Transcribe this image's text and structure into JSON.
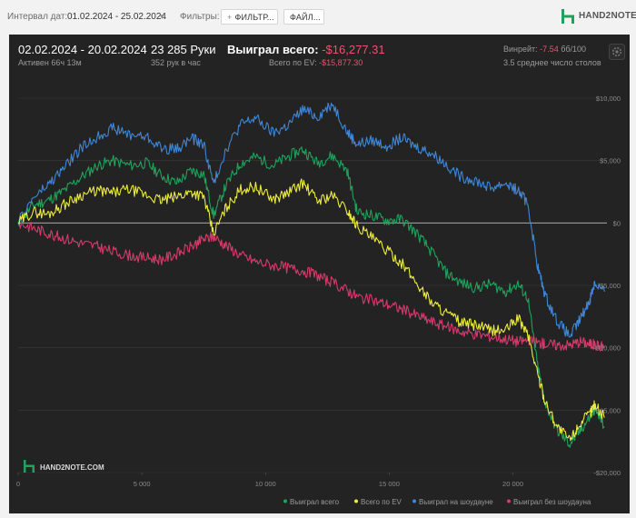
{
  "toolbar": {
    "interval_label": "Интервал дат:",
    "interval_value": "01.02.2024 - 25.02.2024",
    "filters_label": "Фильтры:",
    "filter_button": "ФИЛЬТР...",
    "file_button": "ФАЙЛ...",
    "brand": "HAND2NOTE"
  },
  "summary": {
    "date_range": "02.02.2024 - 20.02.2024",
    "active": "Активен 66ч 13м",
    "hands": "23 285 Руки",
    "hands_per_hour": "352 рук в час",
    "won_label": "Выиграл всего:",
    "won_value": "-$16,277.31",
    "ev_label": "Всего по EV:",
    "ev_value": "-$15,877.30",
    "winrate_label": "Винрейт:",
    "winrate_value": "-7.54",
    "winrate_unit": "бб/100",
    "tables": "3.5 среднее число столов"
  },
  "watermark": "HAND2NOTE.COM",
  "colors": {
    "won": "#1fa35c",
    "ev": "#ecec3a",
    "showdown": "#3f86d6",
    "non_showdown": "#d63a6c",
    "zero_line": "#bbbbbb",
    "grid": "#3a3a3a"
  },
  "chart_data": {
    "type": "line",
    "xlim": [
      0,
      23800
    ],
    "ylim": [
      -20000,
      10000
    ],
    "x_ticks": [
      0,
      5000,
      10000,
      15000,
      20000
    ],
    "x_tick_labels": [
      "0",
      "5 000",
      "10 000",
      "15 000",
      "20 000"
    ],
    "y_ticks": [
      10000,
      5000,
      0,
      -5000,
      -10000,
      -15000,
      -20000
    ],
    "y_tick_labels": [
      "$10,000",
      "$5,000",
      "$0",
      "-$5,000",
      "-$10,000",
      "-$15,000",
      "-$20,000"
    ],
    "grid": true,
    "legend_position": "bottom-right",
    "series": [
      {
        "name": "Выиграл всего",
        "key": "won",
        "x": [
          0,
          600,
          1200,
          1800,
          2500,
          3200,
          3800,
          4500,
          5200,
          5800,
          6400,
          7000,
          7500,
          7900,
          8400,
          9000,
          9600,
          10300,
          10900,
          11500,
          12100,
          12700,
          13300,
          13700,
          14300,
          14900,
          15500,
          16100,
          16700,
          17300,
          17900,
          18500,
          19100,
          19700,
          20200,
          20600,
          21000,
          21300,
          21800,
          22300,
          22700,
          23100,
          23300,
          23700
        ],
        "y": [
          0,
          1400,
          1800,
          2500,
          3600,
          4600,
          5000,
          4600,
          4800,
          3800,
          3200,
          4200,
          3900,
          600,
          3000,
          4800,
          5300,
          4600,
          5300,
          5900,
          4800,
          5400,
          4200,
          900,
          600,
          200,
          300,
          -800,
          -2300,
          -4000,
          -4800,
          -5200,
          -4900,
          -5500,
          -4900,
          -6000,
          -11500,
          -14400,
          -16700,
          -17700,
          -16700,
          -15600,
          -14900,
          -16300
        ]
      },
      {
        "name": "Всего по EV",
        "key": "ev",
        "x": [
          0,
          600,
          1200,
          1800,
          2500,
          3200,
          3800,
          4500,
          5200,
          5800,
          6400,
          7000,
          7500,
          7900,
          8400,
          9000,
          9600,
          10300,
          10900,
          11500,
          12100,
          12700,
          13300,
          13700,
          14300,
          14900,
          15500,
          16100,
          16700,
          17300,
          17900,
          18500,
          19100,
          19700,
          20200,
          20600,
          21000,
          21300,
          21800,
          22300,
          22700,
          23100,
          23300,
          23700
        ],
        "y": [
          0,
          900,
          700,
          1400,
          2200,
          2600,
          2400,
          2700,
          2200,
          1800,
          2100,
          2500,
          2100,
          -900,
          1200,
          2700,
          2900,
          1900,
          2400,
          3200,
          1800,
          2200,
          1000,
          -200,
          -1200,
          -2200,
          -3200,
          -4800,
          -6300,
          -7200,
          -8000,
          -8200,
          -8600,
          -8600,
          -7600,
          -8900,
          -12100,
          -14300,
          -16300,
          -17400,
          -16100,
          -15300,
          -14500,
          -15600
        ]
      },
      {
        "name": "Выиграл на шоудауне",
        "key": "showdown",
        "x": [
          0,
          600,
          1200,
          1800,
          2500,
          3200,
          3800,
          4500,
          5200,
          5800,
          6400,
          7000,
          7500,
          7900,
          8400,
          9000,
          9600,
          10300,
          10900,
          11500,
          12100,
          12700,
          13300,
          13700,
          14300,
          14900,
          15500,
          16100,
          16700,
          17300,
          17900,
          18500,
          19100,
          19700,
          20200,
          20600,
          21000,
          21300,
          21800,
          22300,
          22700,
          23100,
          23300,
          23700
        ],
        "y": [
          0,
          2000,
          3000,
          4300,
          5900,
          6900,
          7600,
          7100,
          6900,
          6000,
          5900,
          6800,
          6300,
          3100,
          5900,
          7900,
          8400,
          7200,
          7800,
          9100,
          8500,
          9600,
          7300,
          6300,
          6600,
          6200,
          6800,
          6100,
          5600,
          4700,
          3700,
          3400,
          2800,
          3200,
          2600,
          1600,
          -3500,
          -5800,
          -7900,
          -9100,
          -7800,
          -6200,
          -4800,
          -5500
        ]
      },
      {
        "name": "Выиграл без шоудауна",
        "key": "non_showdown",
        "x": [
          0,
          600,
          1200,
          1800,
          2500,
          3200,
          3800,
          4500,
          5200,
          5800,
          6400,
          7000,
          7500,
          7900,
          8400,
          9000,
          9600,
          10300,
          10900,
          11500,
          12100,
          12700,
          13300,
          13700,
          14300,
          14900,
          15500,
          16100,
          16700,
          17300,
          17900,
          18500,
          19100,
          19700,
          20200,
          20600,
          21000,
          21300,
          21800,
          22300,
          22700,
          23100,
          23300,
          23700
        ],
        "y": [
          0,
          -400,
          -800,
          -1200,
          -1600,
          -1900,
          -2300,
          -2600,
          -2800,
          -2900,
          -2500,
          -1900,
          -1300,
          -1100,
          -1800,
          -2600,
          -3100,
          -3400,
          -3600,
          -3800,
          -4200,
          -4800,
          -5400,
          -5900,
          -6200,
          -6500,
          -6900,
          -7400,
          -7900,
          -8300,
          -8700,
          -8900,
          -9100,
          -9300,
          -9500,
          -9400,
          -9600,
          -9700,
          -9800,
          -9800,
          -9500,
          -9700,
          -9800,
          -9900
        ]
      }
    ]
  }
}
